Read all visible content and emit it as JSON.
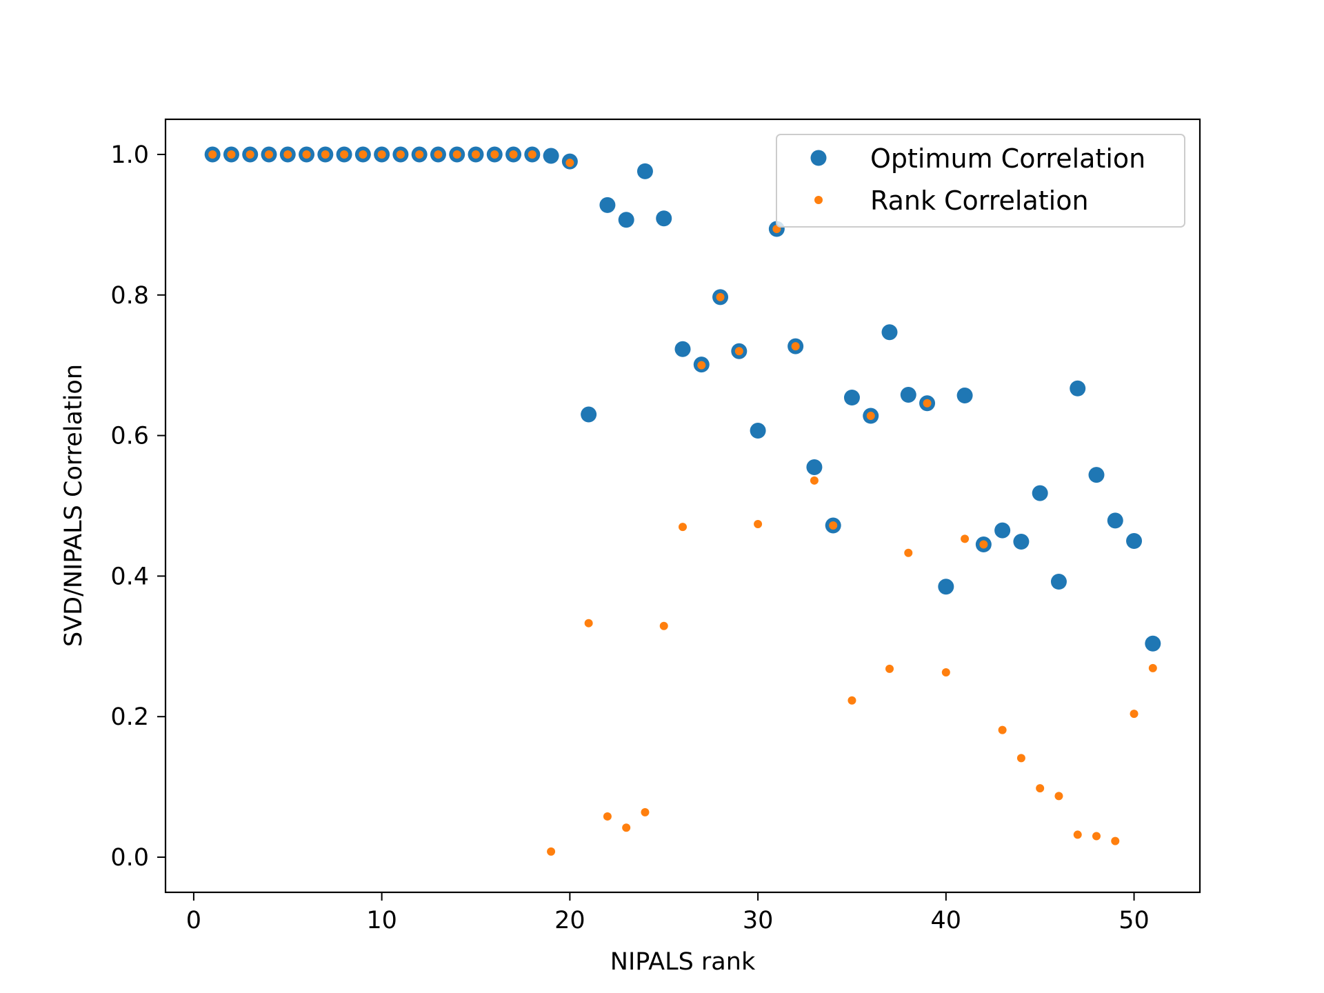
{
  "chart_data": {
    "type": "scatter",
    "title": "",
    "xlabel": "NIPALS rank",
    "ylabel": "SVD/NIPALS Correlation",
    "xlim": [
      -1.5,
      53.5
    ],
    "ylim": [
      -0.05,
      1.05
    ],
    "xticks": [
      0,
      10,
      20,
      30,
      40,
      50
    ],
    "xtick_labels": [
      "0",
      "10",
      "20",
      "30",
      "40",
      "50"
    ],
    "yticks": [
      0.0,
      0.2,
      0.4,
      0.6,
      0.8,
      1.0
    ],
    "ytick_labels": [
      "0.0",
      "0.2",
      "0.4",
      "0.6",
      "0.8",
      "1.0"
    ],
    "grid": false,
    "legend_position": "top-right",
    "x": [
      1,
      2,
      3,
      4,
      5,
      6,
      7,
      8,
      9,
      10,
      11,
      12,
      13,
      14,
      15,
      16,
      17,
      18,
      19,
      20,
      21,
      22,
      23,
      24,
      25,
      26,
      27,
      28,
      29,
      30,
      31,
      32,
      33,
      34,
      35,
      36,
      37,
      38,
      39,
      40,
      41,
      42,
      43,
      44,
      45,
      46,
      47,
      48,
      49,
      50,
      51
    ],
    "series": [
      {
        "name": "Optimum Correlation",
        "color": "#1f77b4",
        "marker": "large-dot",
        "values": [
          1.0,
          1.0,
          1.0,
          1.0,
          1.0,
          1.0,
          1.0,
          1.0,
          1.0,
          1.0,
          1.0,
          1.0,
          1.0,
          1.0,
          1.0,
          1.0,
          1.0,
          1.0,
          0.998,
          0.99,
          0.63,
          0.928,
          0.907,
          0.976,
          0.909,
          0.723,
          0.701,
          0.797,
          0.72,
          0.607,
          0.894,
          0.727,
          0.555,
          0.472,
          0.654,
          0.628,
          0.747,
          0.658,
          0.646,
          0.385,
          0.657,
          0.445,
          0.465,
          0.449,
          0.518,
          0.392,
          0.667,
          0.544,
          0.479,
          0.45,
          0.304
        ]
      },
      {
        "name": "Rank Correlation",
        "color": "#ff7f0e",
        "marker": "small-dot",
        "values": [
          1.0,
          1.0,
          1.0,
          1.0,
          1.0,
          1.0,
          1.0,
          1.0,
          1.0,
          1.0,
          1.0,
          1.0,
          1.0,
          1.0,
          1.0,
          1.0,
          1.0,
          1.0,
          0.008,
          0.988,
          0.333,
          0.058,
          0.042,
          0.064,
          0.329,
          0.47,
          0.7,
          0.797,
          0.72,
          0.474,
          0.894,
          0.727,
          0.536,
          0.472,
          0.223,
          0.628,
          0.268,
          0.433,
          0.646,
          0.263,
          0.453,
          0.445,
          0.181,
          0.141,
          0.098,
          0.087,
          0.032,
          0.03,
          0.023,
          0.204,
          0.269
        ]
      }
    ]
  }
}
